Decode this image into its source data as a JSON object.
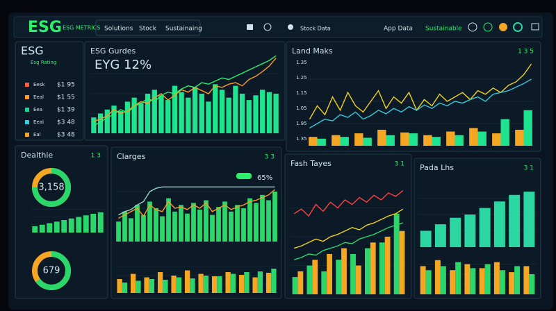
{
  "header": {
    "logo": "ESG",
    "logo_sub": "ESG METRICS",
    "tabs": [
      "Solutions",
      "Stock",
      "Sustainaing"
    ],
    "status": "Stock Data",
    "right_link": "App Data",
    "right_button": "Sustainable"
  },
  "panels": [
    {
      "title": "ESG",
      "subtitle": "Esg Rating",
      "rows": [
        {
          "label": "Eesk",
          "value": "$1 95",
          "color": "#ff5a3c"
        },
        {
          "label": "Eeal",
          "value": "$1 55",
          "color": "#ff9a1f"
        },
        {
          "label": "Eea",
          "value": "$1 39",
          "color": "#19d39a"
        },
        {
          "label": "Eeal",
          "value": "$3 48",
          "color": "#2fd0e0"
        },
        {
          "label": "Eal",
          "value": "$3 48",
          "color": "#f5a623"
        }
      ]
    },
    {
      "title": "ESG Gurdes",
      "headline": "EYG 12%",
      "charts": [
        {
          "ylim": [
            0,
            100
          ],
          "series": [
            {
              "kind": "bar",
              "color": "#1ee38f",
              "values": [
                20,
                25,
                30,
                35,
                28,
                40,
                45,
                38,
                50,
                55,
                48,
                42,
                60,
                52,
                45,
                58,
                50,
                40,
                62,
                55,
                45,
                60,
                50,
                42,
                48,
                55,
                52,
                50
              ]
            },
            {
              "kind": "line",
              "color": "#ff9a1f",
              "values": [
                15,
                18,
                22,
                30,
                25,
                28,
                35,
                40,
                38,
                45,
                50,
                42,
                48,
                55,
                52,
                58,
                54,
                50,
                60,
                58,
                62,
                64,
                60,
                68,
                72,
                78,
                85,
                95
              ]
            },
            {
              "kind": "line",
              "color": "#2bf06a",
              "values": [
                10,
                14,
                20,
                24,
                30,
                26,
                34,
                38,
                44,
                40,
                48,
                52,
                50,
                56,
                60,
                58,
                64,
                62,
                66,
                70,
                68,
                72,
                76,
                80,
                84,
                88,
                92,
                98
              ]
            }
          ]
        }
      ]
    },
    {
      "title": "Land Maks",
      "corner": "1 3 5",
      "ylabels": [
        "1.35",
        "1.25",
        "1.15",
        "1.05",
        "1.95",
        "1.35"
      ],
      "charts": [
        {
          "ylim": [
            0,
            100
          ],
          "series": [
            {
              "kind": "bar",
              "color": "#f5a623",
              "values": [
                10,
                12,
                14,
                18,
                15,
                12,
                16,
                20,
                14,
                18
              ]
            },
            {
              "kind": "bar",
              "color": "#1ee38f",
              "values": [
                8,
                10,
                9,
                12,
                14,
                10,
                12,
                16,
                30,
                40
              ]
            },
            {
              "kind": "line",
              "color": "#f2d21c",
              "values": [
                30,
                45,
                35,
                55,
                40,
                60,
                45,
                38,
                50,
                62,
                42,
                55,
                48,
                60,
                40,
                52,
                45,
                58,
                50,
                55,
                60,
                52,
                62,
                58,
                65,
                60,
                68,
                72,
                80,
                92
              ]
            },
            {
              "kind": "line",
              "color": "#36c9d8",
              "values": [
                20,
                25,
                30,
                28,
                35,
                32,
                38,
                30,
                34,
                40,
                36,
                42,
                38,
                44,
                40,
                46,
                42,
                48,
                45,
                50,
                48,
                52,
                55,
                50,
                58,
                60,
                62,
                66,
                70,
                75
              ]
            }
          ]
        }
      ]
    },
    {
      "title": "Dealthie",
      "corner": "1 3",
      "donuts": [
        {
          "label": "3,158",
          "value": 75
        },
        {
          "label": "679",
          "value": 65
        }
      ],
      "charts": [
        {
          "ylim": [
            0,
            100
          ],
          "series": [
            {
              "kind": "bar",
              "color": "#2bd66a",
              "values": [
                20,
                25,
                30,
                35,
                40,
                45,
                50,
                55,
                60,
                65
              ]
            }
          ]
        }
      ]
    },
    {
      "title": "Clarges",
      "badge": "65%",
      "corner": "3 3",
      "charts": [
        {
          "ylim": [
            0,
            100
          ],
          "series": [
            {
              "kind": "bar",
              "color": "#2bd66a",
              "values": [
                30,
                45,
                35,
                55,
                40,
                60,
                50,
                38,
                65,
                45,
                55,
                42,
                58,
                48,
                62,
                40,
                52,
                60,
                45,
                55,
                50,
                65,
                58,
                70,
                62,
                75
              ]
            },
            {
              "kind": "line",
              "color": "#ff9a1f",
              "values": [
                35,
                40,
                45,
                50,
                38,
                55,
                48,
                45,
                60,
                50,
                52,
                48,
                55,
                50,
                58,
                45,
                50,
                55,
                48,
                52,
                55,
                60,
                62,
                66,
                70,
                78
              ]
            },
            {
              "kind": "line",
              "color": "#9ad8c8",
              "values": [
                40,
                45,
                48,
                55,
                60,
                75,
                80,
                82,
                82,
                82,
                82,
                82,
                82,
                82,
                82,
                82,
                82,
                82,
                82,
                82,
                82,
                82,
                82,
                82,
                82,
                82
              ]
            }
          ]
        },
        {
          "ylim": [
            0,
            100
          ],
          "series": [
            {
              "kind": "bar",
              "color": "#f5a623",
              "values": [
                40,
                55,
                45,
                60,
                50,
                65,
                55,
                48,
                60,
                52,
                45,
                58
              ]
            },
            {
              "kind": "bar",
              "color": "#2bd66a",
              "values": [
                30,
                35,
                40,
                38,
                45,
                42,
                50,
                48,
                55,
                60,
                62,
                70
              ]
            }
          ]
        }
      ]
    },
    {
      "title": "Fash Tayes",
      "corner": "3 1",
      "charts": [
        {
          "ylim": [
            0,
            100
          ],
          "series": [
            {
              "kind": "bar",
              "color": "#2bd66a",
              "values": [
                15,
                25,
                20,
                30,
                35,
                40,
                45,
                70
              ]
            },
            {
              "kind": "bar",
              "color": "#f5a623",
              "values": [
                20,
                30,
                35,
                40,
                25,
                45,
                50,
                55
              ]
            },
            {
              "kind": "line",
              "color": "#ff4040",
              "values": [
                70,
                74,
                68,
                78,
                72,
                80,
                75,
                82,
                78,
                84,
                80,
                86,
                82,
                88,
                85,
                90
              ]
            },
            {
              "kind": "line",
              "color": "#f2d21c",
              "values": [
                40,
                42,
                45,
                48,
                46,
                50,
                52,
                55,
                58,
                56,
                60,
                62,
                65,
                68,
                70,
                74
              ]
            },
            {
              "kind": "line",
              "color": "#2bd66a",
              "values": [
                30,
                32,
                35,
                34,
                38,
                40,
                42,
                45,
                44,
                48,
                50,
                52,
                55,
                58,
                60,
                62
              ]
            }
          ]
        }
      ]
    },
    {
      "title": "Pada Lhs",
      "corner": "3 1",
      "charts": [
        {
          "ylim": [
            0,
            100
          ],
          "series": [
            {
              "kind": "bar",
              "color": "#2bd6a0",
              "values": [
                25,
                35,
                45,
                50,
                60,
                70,
                80,
                85
              ]
            }
          ]
        },
        {
          "ylim": [
            0,
            100
          ],
          "series": [
            {
              "kind": "bar",
              "color": "#f5a623",
              "values": [
                70,
                85,
                60,
                75,
                65,
                80,
                55,
                70
              ]
            },
            {
              "kind": "bar",
              "color": "#2bd66a",
              "values": [
                60,
                70,
                80,
                65,
                75,
                60,
                70,
                50
              ]
            }
          ]
        }
      ]
    }
  ]
}
